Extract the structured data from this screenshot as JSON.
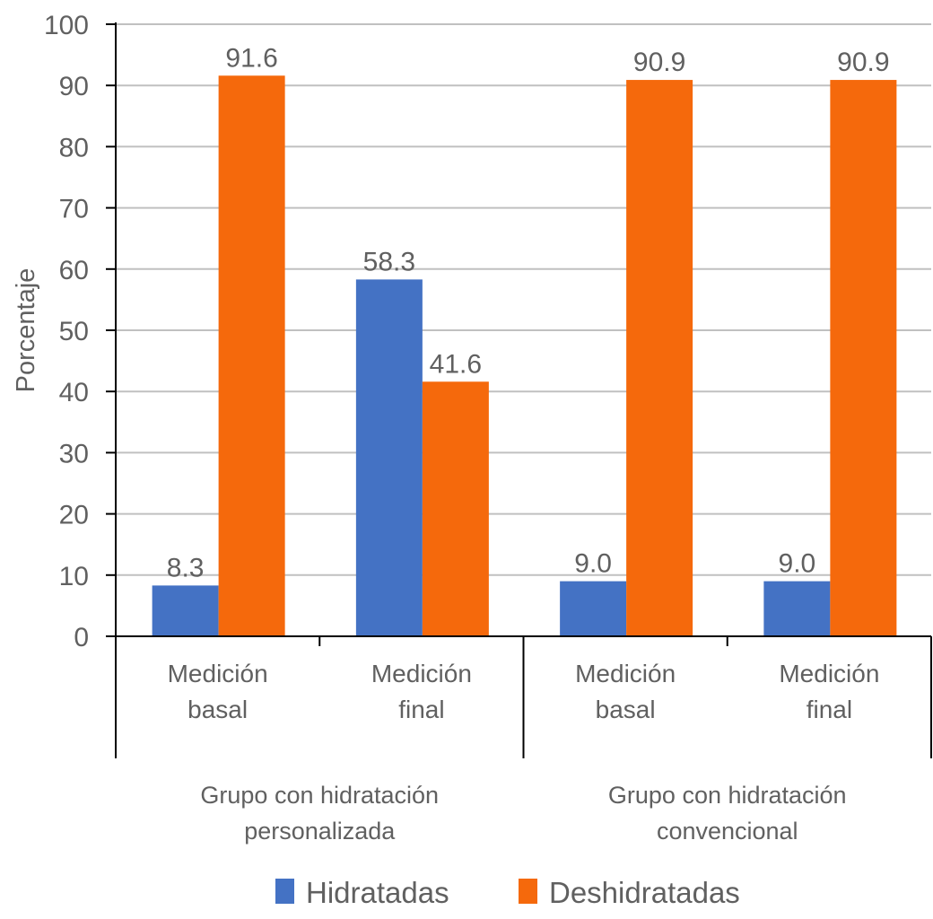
{
  "chart_data": {
    "type": "bar",
    "title": "",
    "xlabel": "",
    "ylabel": "Porcentaje",
    "ylim": [
      0,
      100
    ],
    "yticks": [
      0,
      10,
      20,
      30,
      40,
      50,
      60,
      70,
      80,
      90,
      100
    ],
    "grid": true,
    "legend_position": "bottom",
    "categories": [
      {
        "label_lines": [
          "Medición",
          "basal"
        ],
        "group": 0
      },
      {
        "label_lines": [
          "Medición",
          "final"
        ],
        "group": 0
      },
      {
        "label_lines": [
          "Medición",
          "basal"
        ],
        "group": 1
      },
      {
        "label_lines": [
          "Medición",
          "final"
        ],
        "group": 1
      }
    ],
    "groups": [
      {
        "label_lines": [
          "Grupo con hidratación",
          "personalizada"
        ]
      },
      {
        "label_lines": [
          "Grupo con hidratación",
          "convencional"
        ]
      }
    ],
    "series": [
      {
        "name": "Hidratadas",
        "color": "#4472c4",
        "values": [
          8.3,
          58.3,
          9.0,
          9.0
        ],
        "labels": [
          "8.3",
          "58.3",
          "9.0",
          "9.0"
        ]
      },
      {
        "name": "Deshidratadas",
        "color": "#f5690c",
        "values": [
          91.6,
          41.6,
          90.9,
          90.9
        ],
        "labels": [
          "91.6",
          "41.6",
          "90.9",
          "90.9"
        ]
      }
    ]
  },
  "colors": {
    "text": "#606060",
    "grid": "#c0c0c0",
    "axis": "#000000"
  }
}
